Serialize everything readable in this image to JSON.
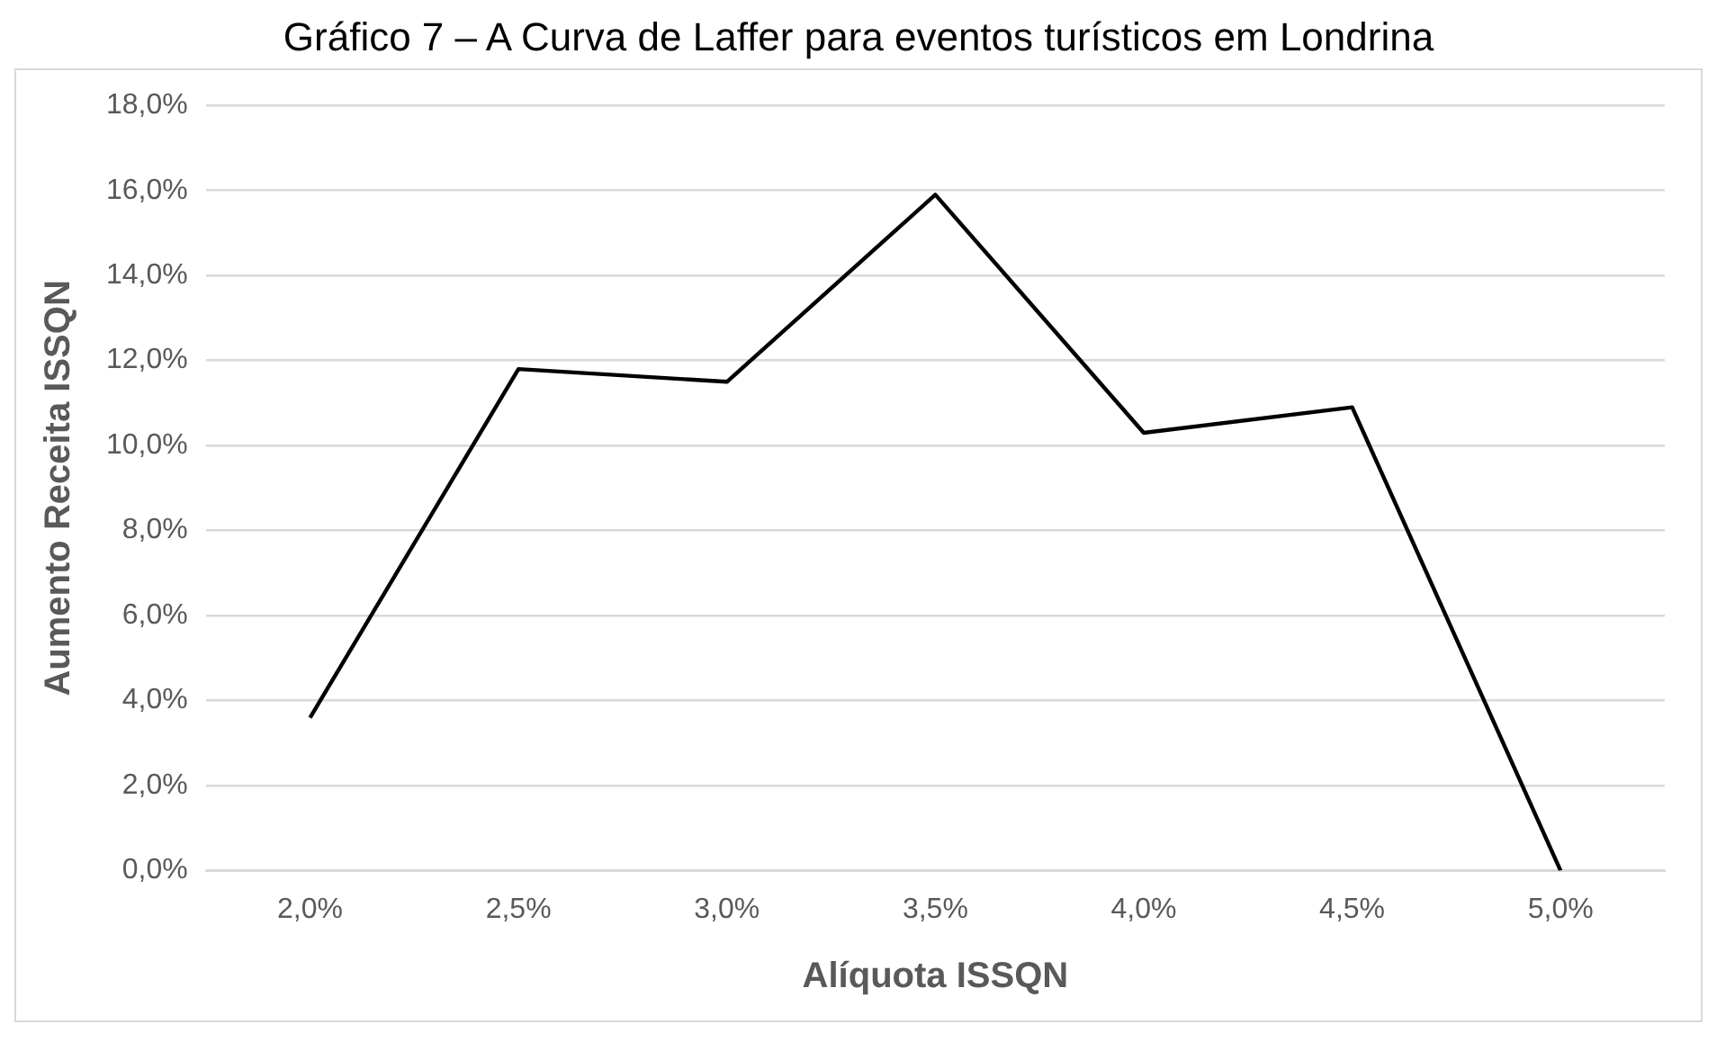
{
  "chart_data": {
    "type": "line",
    "title": "Gráfico 7 – A Curva de Laffer para eventos turísticos em Londrina",
    "xlabel": "Alíquota ISSQN",
    "ylabel": "Aumento Receita ISSQN",
    "categories": [
      "2,0%",
      "2,5%",
      "3,0%",
      "3,5%",
      "4,0%",
      "4,5%",
      "5,0%"
    ],
    "series": [
      {
        "color": "#000000",
        "values": [
          3.6,
          11.8,
          11.5,
          15.9,
          10.3,
          10.9,
          0
        ]
      }
    ],
    "ylim": [
      0,
      18
    ],
    "yticks": [
      {
        "value": 0,
        "label": "0,0%"
      },
      {
        "value": 2,
        "label": "2,0%"
      },
      {
        "value": 4,
        "label": "4,0%"
      },
      {
        "value": 6,
        "label": "6,0%"
      },
      {
        "value": 8,
        "label": "8,0%"
      },
      {
        "value": 10,
        "label": "10,0%"
      },
      {
        "value": 12,
        "label": "12,0%"
      },
      {
        "value": 14,
        "label": "14,0%"
      },
      {
        "value": 16,
        "label": "16,0%"
      },
      {
        "value": 18,
        "label": "18,0%"
      }
    ],
    "grid": "y",
    "legend": false,
    "marker": "none",
    "line_style": "solid"
  }
}
